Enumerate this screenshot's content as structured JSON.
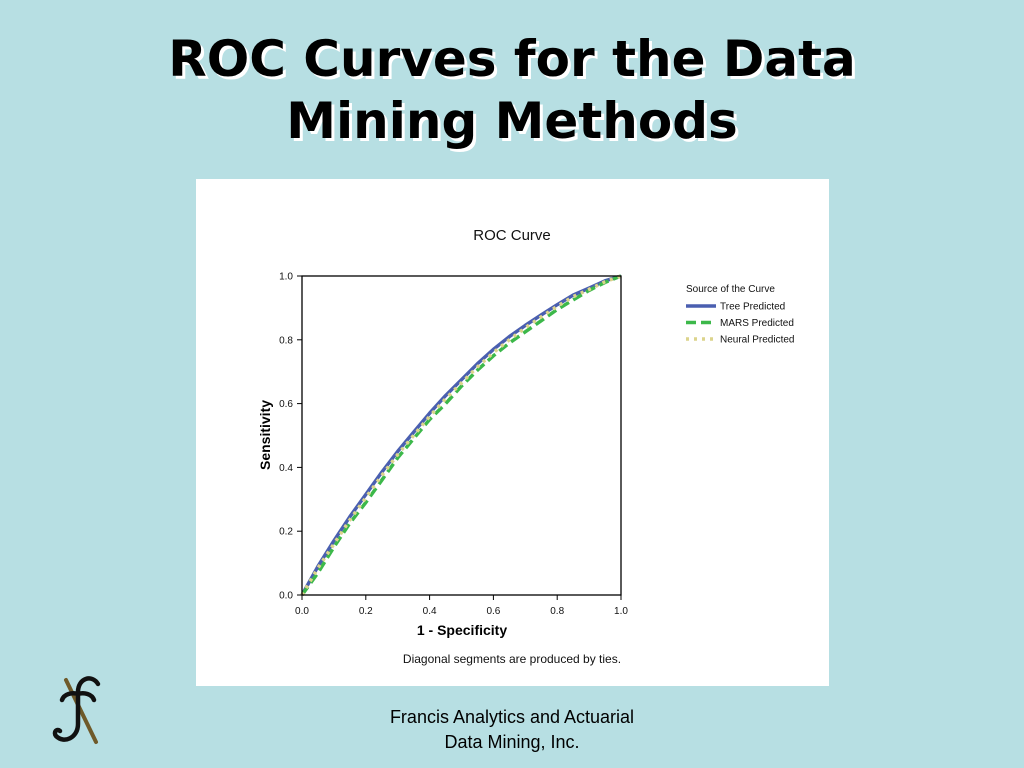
{
  "slide": {
    "title_line1": "ROC Curves for the Data",
    "title_line2": "Mining Methods",
    "footer_line1": "Francis Analytics and Actuarial",
    "footer_line2": "Data Mining, Inc."
  },
  "colors": {
    "background": "#b7dfe3",
    "tree": "#4a5fb0",
    "mars": "#3cb84a",
    "neural": "#dcd48c"
  },
  "chart_data": {
    "type": "line",
    "title": "ROC Curve",
    "xlabel": "1 - Specificity",
    "ylabel": "Sensitivity",
    "xlim": [
      0,
      1
    ],
    "ylim": [
      0,
      1
    ],
    "xticks": [
      "0.0",
      "0.2",
      "0.4",
      "0.6",
      "0.8",
      "1.0"
    ],
    "yticks": [
      "0.0",
      "0.2",
      "0.4",
      "0.6",
      "0.8",
      "1.0"
    ],
    "grid": false,
    "legend": {
      "title": "Source of the Curve",
      "placement": "top-right, outside plot"
    },
    "note": "Diagonal segments are produced by ties.",
    "series": [
      {
        "name": "Tree Predicted",
        "style": "solid",
        "color": "#4a5fb0",
        "x": [
          0,
          0.05,
          0.1,
          0.15,
          0.2,
          0.25,
          0.3,
          0.35,
          0.4,
          0.45,
          0.5,
          0.55,
          0.6,
          0.65,
          0.7,
          0.75,
          0.8,
          0.85,
          0.9,
          0.95,
          1.0
        ],
        "y": [
          0,
          0.09,
          0.17,
          0.245,
          0.315,
          0.385,
          0.45,
          0.51,
          0.57,
          0.625,
          0.675,
          0.725,
          0.77,
          0.81,
          0.845,
          0.878,
          0.91,
          0.94,
          0.962,
          0.985,
          1.0
        ]
      },
      {
        "name": "MARS Predicted",
        "style": "dashed",
        "color": "#3cb84a",
        "x": [
          0,
          0.05,
          0.1,
          0.15,
          0.2,
          0.25,
          0.3,
          0.35,
          0.4,
          0.45,
          0.5,
          0.55,
          0.6,
          0.65,
          0.7,
          0.75,
          0.8,
          0.85,
          0.9,
          0.95,
          1.0
        ],
        "y": [
          0,
          0.07,
          0.15,
          0.225,
          0.29,
          0.36,
          0.43,
          0.49,
          0.55,
          0.6,
          0.655,
          0.705,
          0.75,
          0.79,
          0.825,
          0.86,
          0.895,
          0.925,
          0.955,
          0.98,
          1.0
        ]
      },
      {
        "name": "Neural Predicted",
        "style": "dotted",
        "color": "#dcd48c",
        "x": [
          0,
          0.05,
          0.1,
          0.15,
          0.2,
          0.25,
          0.3,
          0.35,
          0.4,
          0.45,
          0.5,
          0.55,
          0.6,
          0.65,
          0.7,
          0.75,
          0.8,
          0.85,
          0.9,
          0.95,
          1.0
        ],
        "y": [
          0,
          0.085,
          0.16,
          0.235,
          0.305,
          0.375,
          0.44,
          0.5,
          0.56,
          0.615,
          0.665,
          0.715,
          0.76,
          0.8,
          0.838,
          0.872,
          0.905,
          0.935,
          0.958,
          0.982,
          1.0
        ]
      }
    ]
  }
}
